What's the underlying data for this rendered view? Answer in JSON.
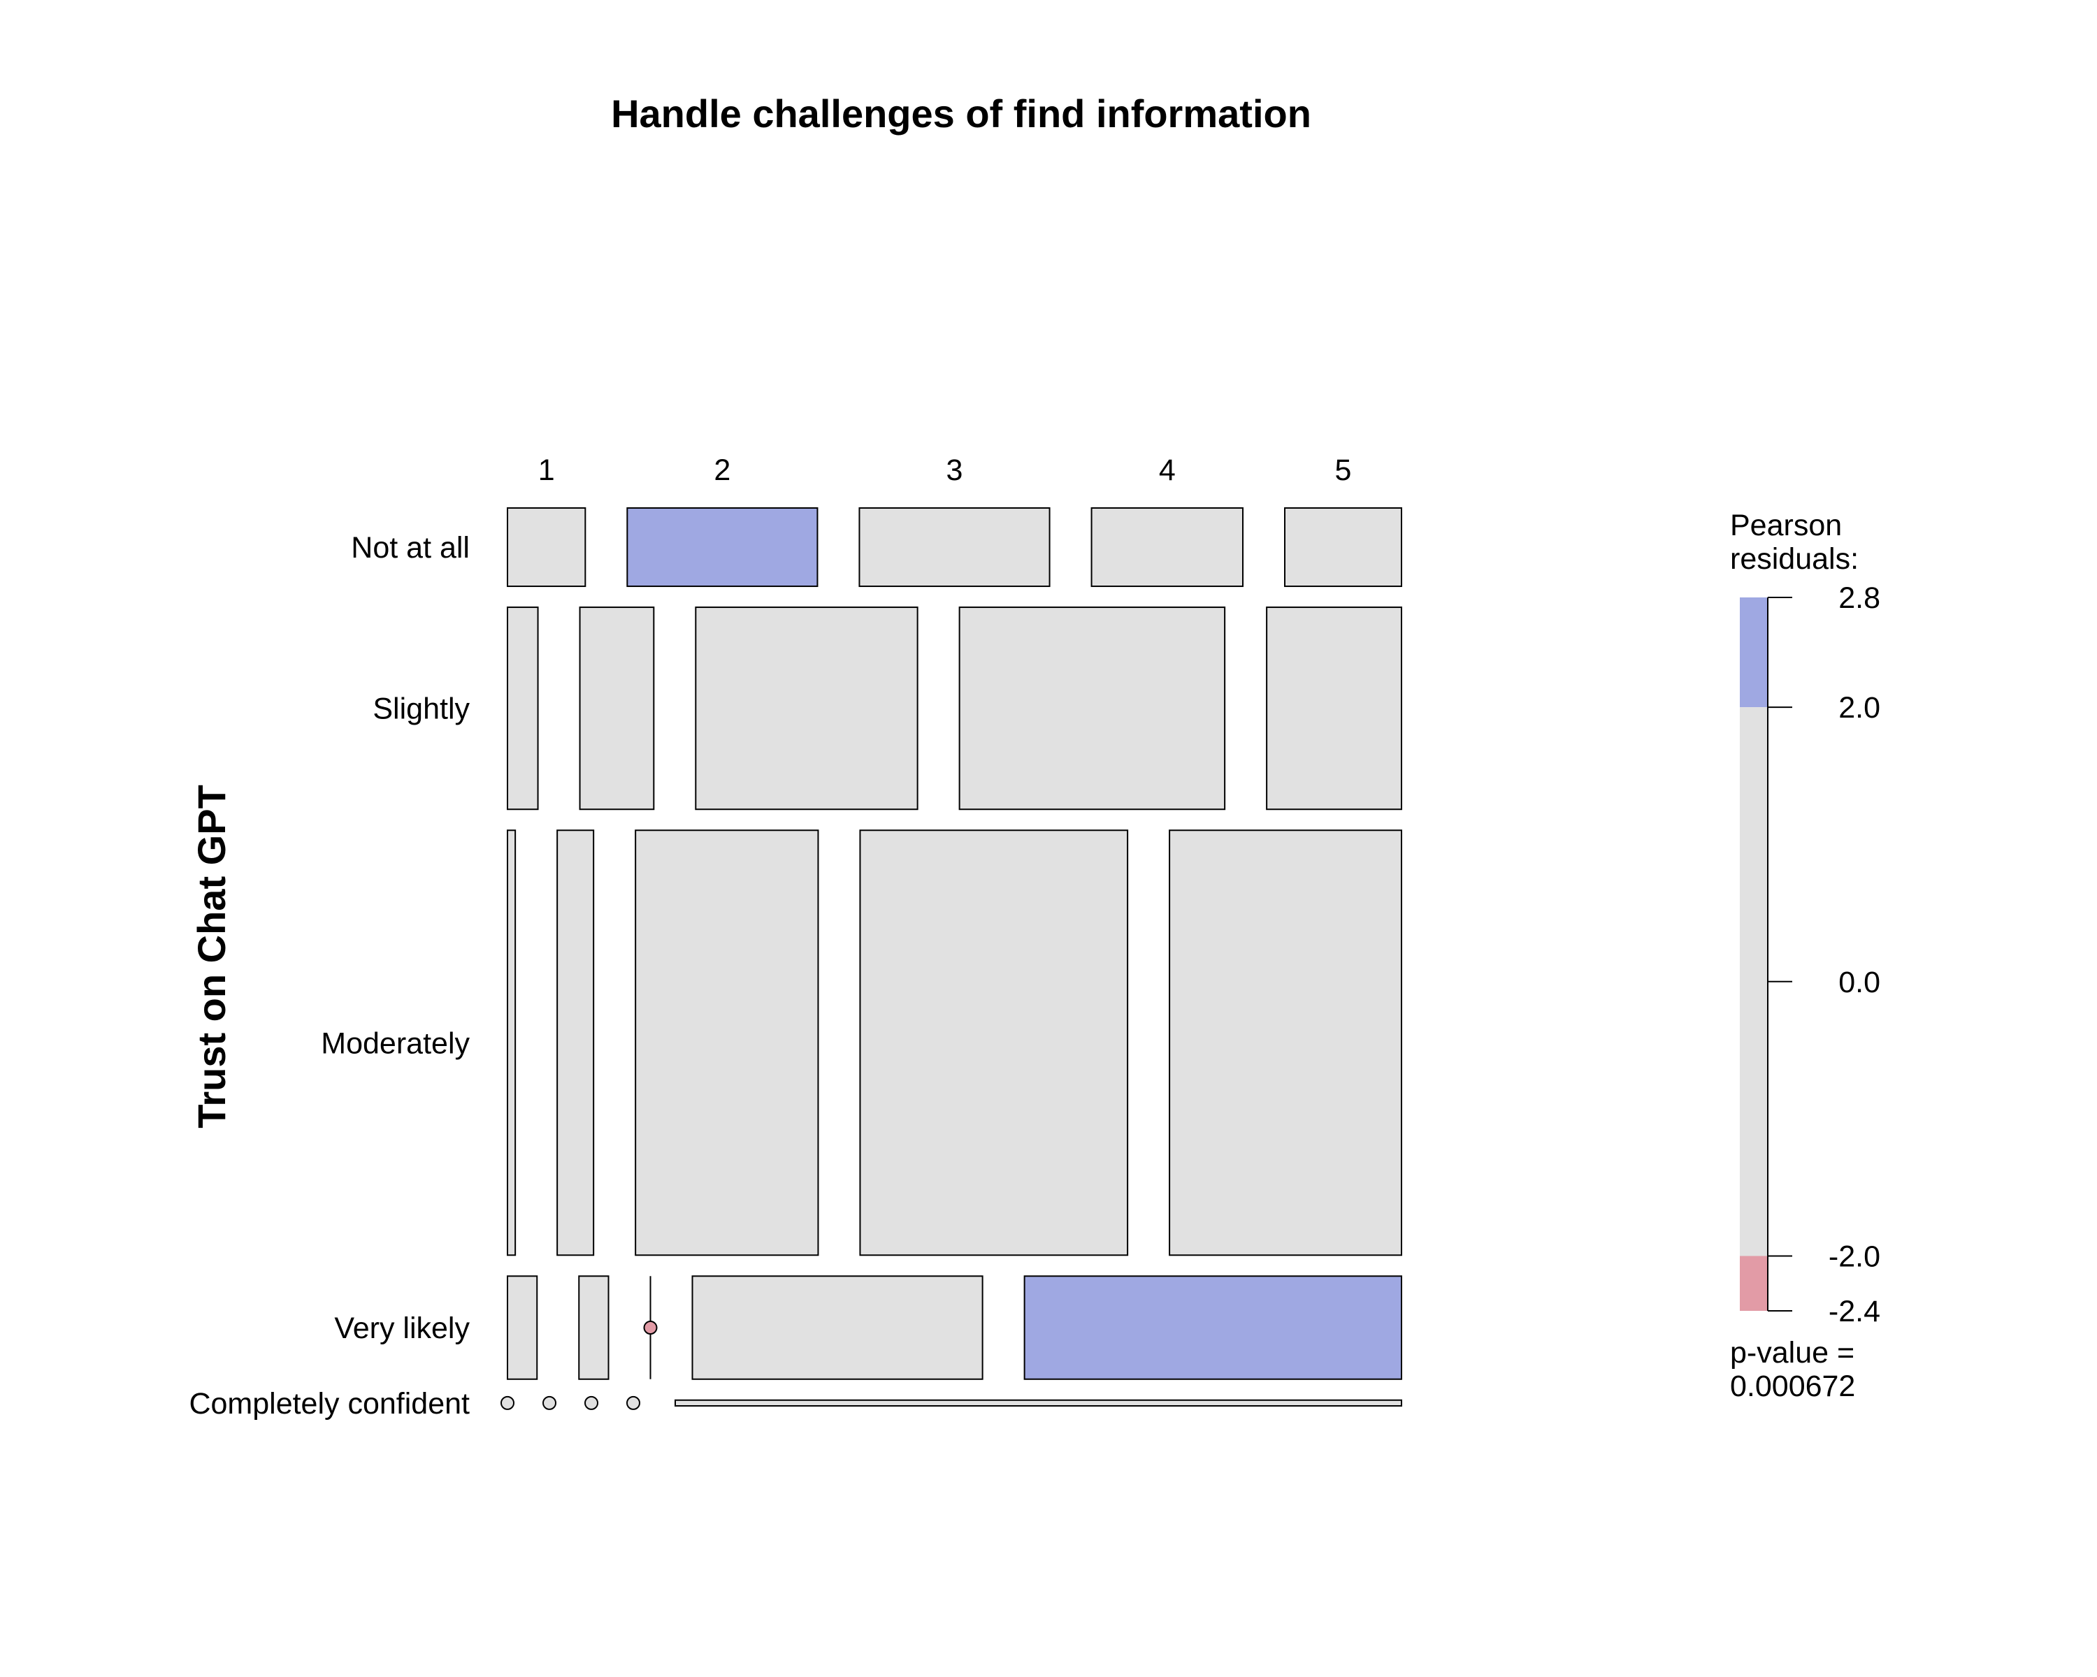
{
  "chart_data": {
    "type": "mosaic",
    "title": "Handle challenges of find information",
    "xlabel": "",
    "ylabel": "Trust on Chat GPT",
    "columns": [
      "1",
      "2",
      "3",
      "4",
      "5"
    ],
    "rows": [
      "Not at all",
      "Slightly",
      "Moderately",
      "Very likely",
      "Completely confident"
    ],
    "row_proportions": [
      0.136,
      0.351,
      0.738,
      0.179,
      0.01
    ],
    "cell_proportions": [
      [
        0.09,
        0.22,
        0.22,
        0.175,
        0.135
      ],
      [
        0.035,
        0.085,
        0.255,
        0.305,
        0.155
      ],
      [
        0.009,
        0.042,
        0.211,
        0.309,
        0.268
      ],
      [
        0.034,
        0.034,
        0.0,
        0.334,
        0.434
      ],
      [
        0.0,
        0.0,
        0.0,
        0.0,
        0.835
      ]
    ],
    "residual_level": [
      [
        "mid",
        "high",
        "mid",
        "mid",
        "mid"
      ],
      [
        "mid",
        "mid",
        "mid",
        "mid",
        "mid"
      ],
      [
        "mid",
        "mid",
        "mid",
        "mid",
        "mid"
      ],
      [
        "mid",
        "mid",
        "low",
        "mid",
        "high"
      ],
      [
        "mid",
        "mid",
        "mid",
        "mid",
        "mid"
      ]
    ],
    "legend": {
      "title_line1": "Pearson",
      "title_line2": "residuals:",
      "ticks": [
        "2.8",
        "2.0",
        "0.0",
        "-2.0",
        "-2.4"
      ],
      "tick_values": [
        2.8,
        2.0,
        0.0,
        -2.0,
        -2.4
      ],
      "pvalue_line1": "p-value =",
      "pvalue_line2": "0.000672"
    },
    "colors": {
      "high": "#9fa8e2",
      "mid": "#e1e1e1",
      "low": "#e29ba6",
      "border": "#000000"
    }
  }
}
